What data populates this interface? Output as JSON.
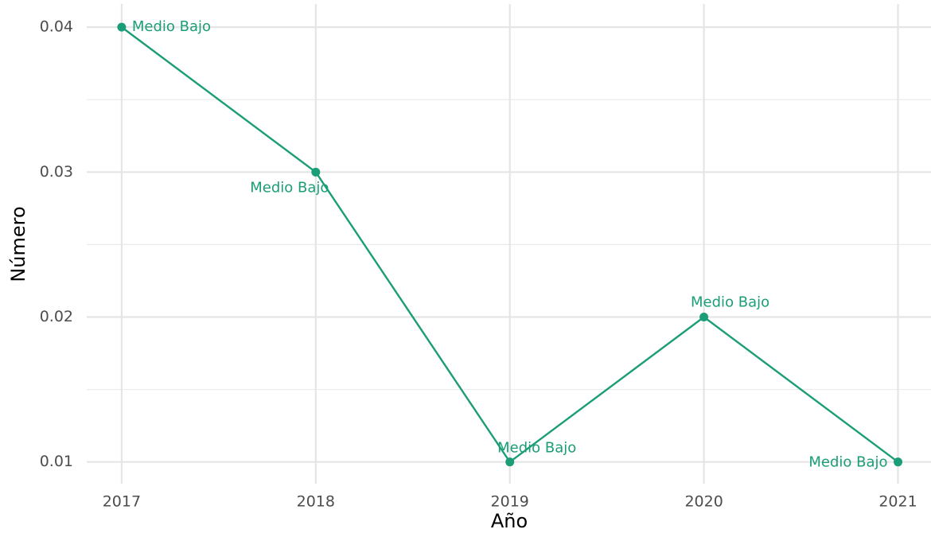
{
  "chart_data": {
    "type": "line",
    "x_label": "Año",
    "y_label": "Número",
    "x": [
      2017,
      2018,
      2019,
      2020,
      2021
    ],
    "series": [
      {
        "name": "Medio Bajo",
        "color": "#1b9e77",
        "values": [
          0.04,
          0.03,
          0.01,
          0.02,
          0.01
        ]
      }
    ],
    "xlim": [
      2016.82,
      2021.17
    ],
    "xticks": [
      2017,
      2018,
      2019,
      2020,
      2021
    ],
    "ylim": [
      0.0085,
      0.0416
    ],
    "yticks": [
      {
        "value": 0.01,
        "label": "0.01"
      },
      {
        "value": 0.02,
        "label": "0.02"
      },
      {
        "value": 0.03,
        "label": "0.03"
      },
      {
        "value": 0.04,
        "label": "0.04"
      }
    ],
    "y_minor_ticks": [
      0.015,
      0.025,
      0.035
    ],
    "grid": true,
    "point_labels": true
  }
}
